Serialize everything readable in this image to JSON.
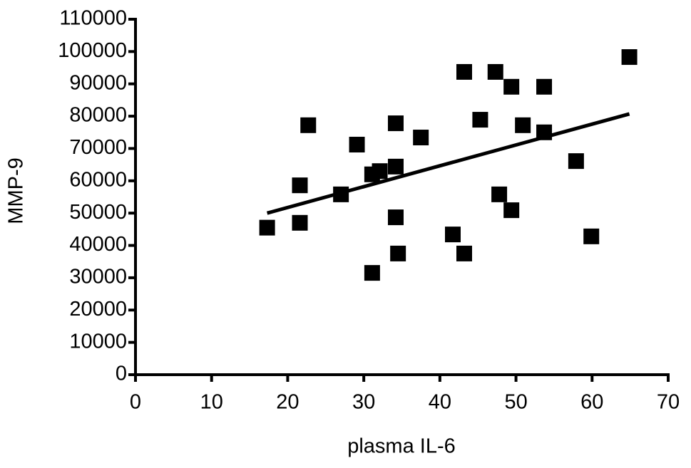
{
  "chart_data": {
    "type": "scatter",
    "x_label": "plasma IL-6",
    "y_label": "MMP-9",
    "series": [
      {
        "color": "#000000",
        "x": [
          17.3,
          21.6,
          21.6,
          22.7,
          27.0,
          29.1,
          31.1,
          32.1,
          34.2,
          34.2,
          34.2,
          34.5,
          31.1,
          37.5,
          41.7,
          43.2,
          43.2,
          45.3,
          47.3,
          47.8,
          49.4,
          49.4,
          50.9,
          53.7,
          53.7,
          57.9,
          59.9,
          64.9
        ],
        "values": [
          45500,
          58600,
          47000,
          77200,
          55800,
          71200,
          62000,
          63000,
          64400,
          77800,
          48700,
          37500,
          31500,
          73400,
          43400,
          93700,
          37500,
          78900,
          93700,
          55800,
          89100,
          50900,
          77200,
          89100,
          75000,
          66100,
          42800,
          98300
        ]
      }
    ],
    "trend_line": {
      "color": "#000000",
      "x": [
        17.3,
        64.9
      ],
      "values": [
        50000,
        80700
      ]
    },
    "xlim": [
      0,
      70
    ],
    "xticks": [
      0,
      10,
      20,
      30,
      40,
      50,
      60,
      70
    ],
    "ylim": [
      0,
      110000
    ],
    "yticks": [
      0,
      10000,
      20000,
      30000,
      40000,
      50000,
      60000,
      70000,
      80000,
      90000,
      100000,
      110000
    ],
    "grid": false
  }
}
